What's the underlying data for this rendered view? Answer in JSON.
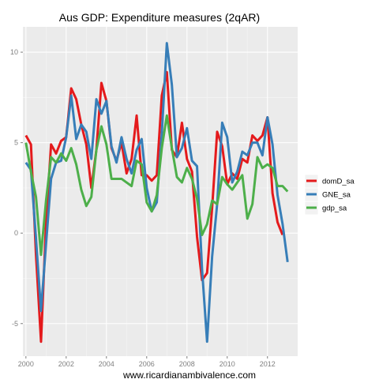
{
  "chart_data": {
    "type": "line",
    "title": "Aus GDP: Expenditure measures (2qAR)",
    "xlabel": "www.ricardianambivalence.com",
    "ylabel": "",
    "xlim": [
      1999.85,
      2013.5
    ],
    "ylim": [
      -6.8,
      11.4
    ],
    "x_ticks": [
      2000,
      2002,
      2004,
      2006,
      2008,
      2010,
      2012
    ],
    "x_tick_labels": [
      "2000",
      "2002",
      "2004",
      "2006",
      "2008",
      "2010",
      "2012"
    ],
    "y_ticks": [
      -5,
      0,
      5,
      10
    ],
    "y_tick_labels": [
      "-5",
      "0",
      "5",
      "10"
    ],
    "grid": true,
    "legend_position": "right",
    "x": [
      2000.0,
      2000.25,
      2000.5,
      2000.75,
      2001.0,
      2001.25,
      2001.5,
      2001.75,
      2002.0,
      2002.25,
      2002.5,
      2002.75,
      2003.0,
      2003.25,
      2003.5,
      2003.75,
      2004.0,
      2004.25,
      2004.5,
      2004.75,
      2005.0,
      2005.25,
      2005.5,
      2005.75,
      2006.0,
      2006.25,
      2006.5,
      2006.75,
      2007.0,
      2007.25,
      2007.5,
      2007.75,
      2008.0,
      2008.25,
      2008.5,
      2008.75,
      2009.0,
      2009.25,
      2009.5,
      2009.75,
      2010.0,
      2010.25,
      2010.5,
      2010.75,
      2011.0,
      2011.25,
      2011.5,
      2011.75,
      2012.0,
      2012.25,
      2012.5,
      2012.75,
      2013.0
    ],
    "series": [
      {
        "name": "domD_sa",
        "color": "#e41a1c",
        "values": [
          5.4,
          4.9,
          -1.2,
          -6.0,
          0.6,
          4.9,
          4.4,
          5.1,
          5.3,
          8.0,
          7.4,
          6.0,
          4.9,
          2.5,
          4.6,
          8.3,
          7.3,
          4.7,
          4.0,
          5.0,
          3.3,
          4.1,
          6.5,
          3.2,
          3.2,
          2.9,
          3.2,
          7.6,
          8.9,
          4.6,
          4.2,
          6.1,
          4.1,
          3.4,
          -0.2,
          -2.6,
          -2.2,
          1.4,
          5.6,
          4.8,
          2.7,
          3.3,
          3.0,
          4.1,
          3.9,
          5.4,
          5.1,
          5.4,
          6.4,
          2.2,
          0.6,
          -0.1,
          null
        ]
      },
      {
        "name": "GNE_sa",
        "color": "#377eb8",
        "values": [
          3.9,
          3.5,
          -0.3,
          -4.3,
          -0.6,
          3.0,
          3.9,
          4.0,
          5.3,
          7.6,
          5.2,
          6.0,
          5.6,
          4.1,
          7.4,
          6.6,
          7.3,
          4.8,
          3.9,
          5.3,
          4.1,
          3.3,
          4.6,
          5.2,
          2.5,
          1.2,
          1.7,
          5.5,
          10.5,
          8.2,
          4.2,
          4.7,
          5.8,
          4.0,
          3.7,
          -2.0,
          -6.0,
          -1.3,
          1.6,
          6.1,
          5.3,
          2.8,
          3.4,
          4.5,
          4.3,
          5.0,
          5.0,
          4.3,
          6.4,
          4.9,
          2.1,
          0.5,
          -1.6
        ]
      },
      {
        "name": "gdp_sa",
        "color": "#4daf4a",
        "values": [
          5.0,
          3.4,
          2.0,
          -1.2,
          1.8,
          4.2,
          3.9,
          4.4,
          4.0,
          4.7,
          3.8,
          2.4,
          1.5,
          2.0,
          4.6,
          5.9,
          4.9,
          3.0,
          3.0,
          3.0,
          2.8,
          2.6,
          4.0,
          3.8,
          1.7,
          1.2,
          2.1,
          4.7,
          6.5,
          4.7,
          3.1,
          2.8,
          3.6,
          3.0,
          1.9,
          -0.1,
          0.5,
          1.8,
          1.6,
          3.1,
          2.7,
          2.4,
          2.8,
          3.2,
          0.8,
          1.6,
          4.2,
          3.6,
          3.8,
          3.6,
          2.6,
          2.6,
          2.3
        ]
      }
    ]
  }
}
